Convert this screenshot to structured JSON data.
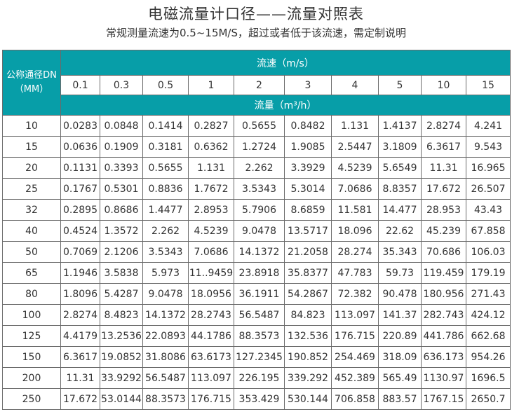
{
  "title": "电磁流量计口径——流量对照表",
  "subtitle": "常规测量流速为0.5~15M/S，超过或者低于该流速，需定制说明",
  "colors": {
    "header": "#079ea8"
  },
  "table": {
    "dn_header_line1": "公称通径DN",
    "dn_header_line2": "（MM）",
    "speed_header": "流速（m/s）",
    "flow_header": "流量（m³/h）",
    "speeds": [
      "0.1",
      "0.3",
      "0.5",
      "1",
      "2",
      "3",
      "4",
      "5",
      "10",
      "15"
    ],
    "rows": [
      {
        "dn": "10",
        "values": [
          "0.0283",
          "0.0848",
          "0.1414",
          "0.2827",
          "0.5655",
          "0.8482",
          "1.131",
          "1.4137",
          "2.8274",
          "4.241"
        ]
      },
      {
        "dn": "15",
        "values": [
          "0.0636",
          "0.1909",
          "0.3181",
          "0.6362",
          "1.2724",
          "1.9085",
          "2.5447",
          "3.1809",
          "6.3617",
          "9.543"
        ]
      },
      {
        "dn": "20",
        "values": [
          "0.1131",
          "0.3393",
          "0.5655",
          "1.131",
          "2.262",
          "3.3929",
          "4.5239",
          "5.6549",
          "11.31",
          "16.965"
        ]
      },
      {
        "dn": "25",
        "values": [
          "0.1767",
          "0.5301",
          "0.8836",
          "1.7672",
          "3.5343",
          "5.3014",
          "7.0686",
          "8.8357",
          "17.672",
          "26.507"
        ]
      },
      {
        "dn": "32",
        "values": [
          "0.2895",
          "0.8686",
          "1.4477",
          "2.8953",
          "5.7906",
          "8.6859",
          "11.581",
          "14.477",
          "28.953",
          "43.43"
        ]
      },
      {
        "dn": "40",
        "values": [
          "0.4524",
          "1.3572",
          "2.262",
          "4.5239",
          "9.0478",
          "13.5717",
          "18.096",
          "22.62",
          "45.239",
          "67.858"
        ]
      },
      {
        "dn": "50",
        "values": [
          "0.7069",
          "2.1206",
          "3.5343",
          "7.0686",
          "14.1372",
          "21.2058",
          "28.274",
          "35.343",
          "70.686",
          "106.03"
        ]
      },
      {
        "dn": "65",
        "values": [
          "1.1946",
          "3.5838",
          "5.973",
          "11..9459",
          "23.8918",
          "35.8377",
          "47.783",
          "59.73",
          "119.459",
          "179.19"
        ]
      },
      {
        "dn": "80",
        "values": [
          "1.8096",
          "5.4287",
          "9.0478",
          "18.0956",
          "36.1911",
          "54.2867",
          "72.382",
          "90.478",
          "180.956",
          "271.43"
        ]
      },
      {
        "dn": "100",
        "values": [
          "2.8274",
          "8.4823",
          "14.1372",
          "28.2743",
          "56.5487",
          "84.823",
          "113.097",
          "141.37",
          "282.743",
          "424.12"
        ]
      },
      {
        "dn": "125",
        "values": [
          "4.4179",
          "13.2536",
          "22.0893",
          "44.1786",
          "88.3573",
          "132.536",
          "176.715",
          "220.89",
          "441.786",
          "662.68"
        ]
      },
      {
        "dn": "150",
        "values": [
          "6.3617",
          "19.0852",
          "31.8086",
          "63.6173",
          "127.2345",
          "190.852",
          "254.469",
          "318.09",
          "636.173",
          "954.26"
        ]
      },
      {
        "dn": "200",
        "values": [
          "11.31",
          "33.9292",
          "56.5487",
          "113.097",
          "226.195",
          "339.292",
          "452.389",
          "565.49",
          "1130.97",
          "1696.5"
        ]
      },
      {
        "dn": "250",
        "values": [
          "17.672",
          "53.0144",
          "88.3573",
          "176.715",
          "353.429",
          "530.144",
          "706.858",
          "883.57",
          "1767.15",
          "2650.7"
        ]
      }
    ]
  }
}
